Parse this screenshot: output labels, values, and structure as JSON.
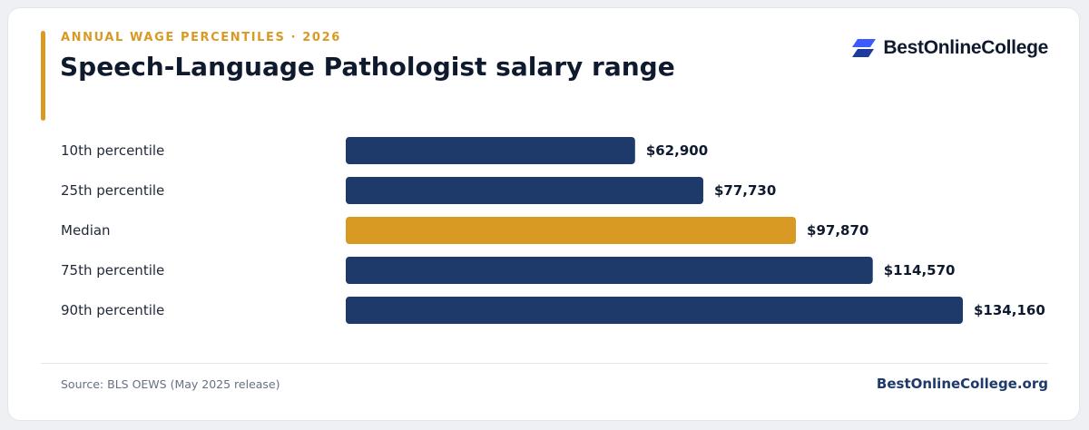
{
  "header": {
    "eyebrow": "ANNUAL WAGE PERCENTILES · 2026",
    "title": "Speech-Language Pathologist salary range"
  },
  "logo": {
    "text": "BestOnlineCollege",
    "icon": "stacked-parallelogram-logo-icon"
  },
  "colors": {
    "accent": "#d99a24",
    "bar": "#1e3a6b",
    "highlight_bar": "#d99a24",
    "title": "#0f1a2e"
  },
  "chart_data": {
    "type": "bar",
    "orientation": "horizontal",
    "categories": [
      "10th percentile",
      "25th percentile",
      "Median",
      "75th percentile",
      "90th percentile"
    ],
    "values": [
      62900,
      77730,
      97870,
      114570,
      134160
    ],
    "value_labels": [
      "$62,900",
      "$77,730",
      "$97,870",
      "$114,570",
      "$134,160"
    ],
    "highlight_category": "Median",
    "title": "Speech-Language Pathologist salary range",
    "xlabel": "",
    "ylabel": "",
    "xlim": [
      0,
      134160
    ],
    "grid": false,
    "legend": "none"
  },
  "footer": {
    "source": "Source: BLS OEWS (May 2025 release)",
    "site": "BestOnlineCollege.org"
  }
}
